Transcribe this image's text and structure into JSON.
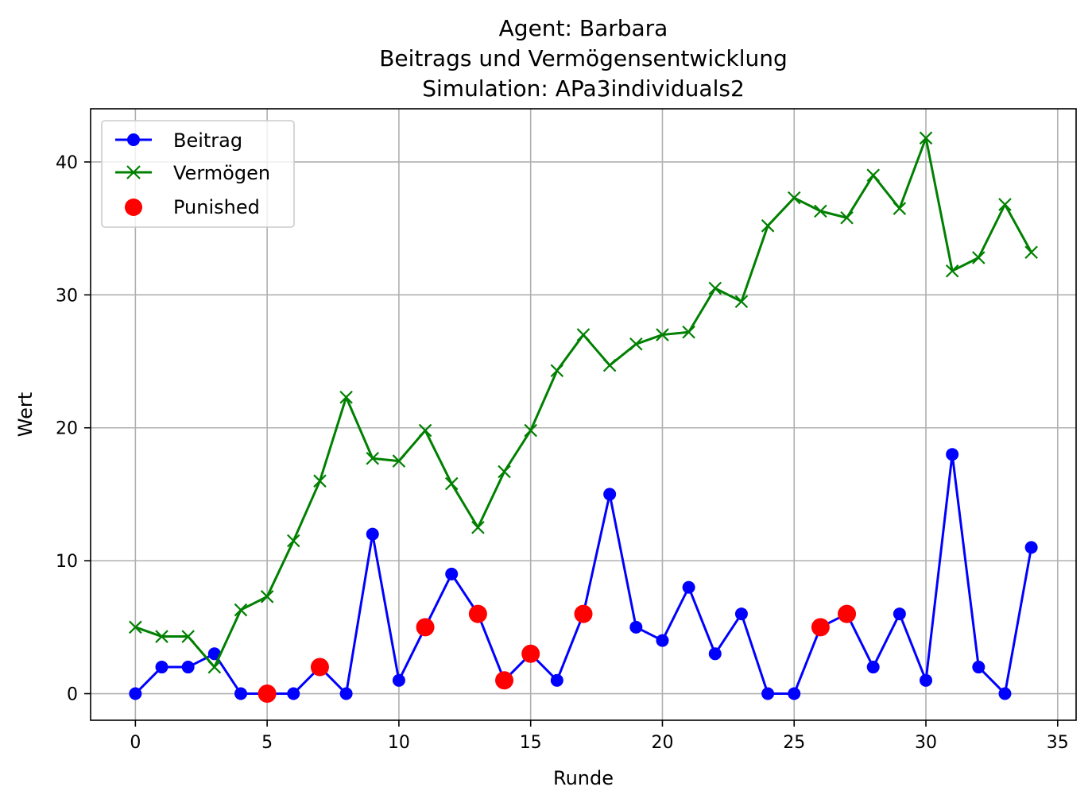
{
  "chart_data": {
    "type": "line",
    "title_lines": [
      "Agent: Barbara",
      "Beitrags und Vermögensentwicklung",
      "Simulation: APa3individuals2"
    ],
    "xlabel": "Runde",
    "ylabel": "Wert",
    "xlim": [
      -1.7,
      35.7
    ],
    "ylim": [
      -2.0,
      44.0
    ],
    "x_ticks": [
      0,
      5,
      10,
      15,
      20,
      25,
      30,
      35
    ],
    "y_ticks": [
      0,
      10,
      20,
      30,
      40
    ],
    "grid": true,
    "legend_position": "top-left",
    "x": [
      0,
      1,
      2,
      3,
      4,
      5,
      6,
      7,
      8,
      9,
      10,
      11,
      12,
      13,
      14,
      15,
      16,
      17,
      18,
      19,
      20,
      21,
      22,
      23,
      24,
      25,
      26,
      27,
      28,
      29,
      30,
      31,
      32,
      33,
      34
    ],
    "series": [
      {
        "name": "Beitrag",
        "color": "#0000ff",
        "marker": "circle",
        "values": [
          0,
          2,
          2,
          3,
          0,
          0,
          0,
          2,
          0,
          12,
          1,
          5,
          9,
          6,
          1,
          3,
          1,
          6,
          15,
          5,
          4,
          8,
          3,
          6,
          0,
          0,
          5,
          6,
          2,
          6,
          1,
          18,
          2,
          0,
          11
        ]
      },
      {
        "name": "Vermögen",
        "color": "#008000",
        "marker": "x",
        "values": [
          5.0,
          4.3,
          4.3,
          2.0,
          6.3,
          7.3,
          11.5,
          16.0,
          22.3,
          17.7,
          17.5,
          19.8,
          15.8,
          12.5,
          16.7,
          19.8,
          24.3,
          27.0,
          24.7,
          26.3,
          27.0,
          27.2,
          30.5,
          29.5,
          35.2,
          37.3,
          36.3,
          35.8,
          39.0,
          36.5,
          41.8,
          31.8,
          32.8,
          36.8,
          33.2
        ]
      }
    ],
    "punished": {
      "name": "Punished",
      "color": "#ff0000",
      "x": [
        5,
        7,
        11,
        13,
        14,
        15,
        17,
        26,
        27
      ],
      "y": [
        0,
        2,
        5,
        6,
        1,
        3,
        6,
        5,
        6
      ]
    }
  }
}
